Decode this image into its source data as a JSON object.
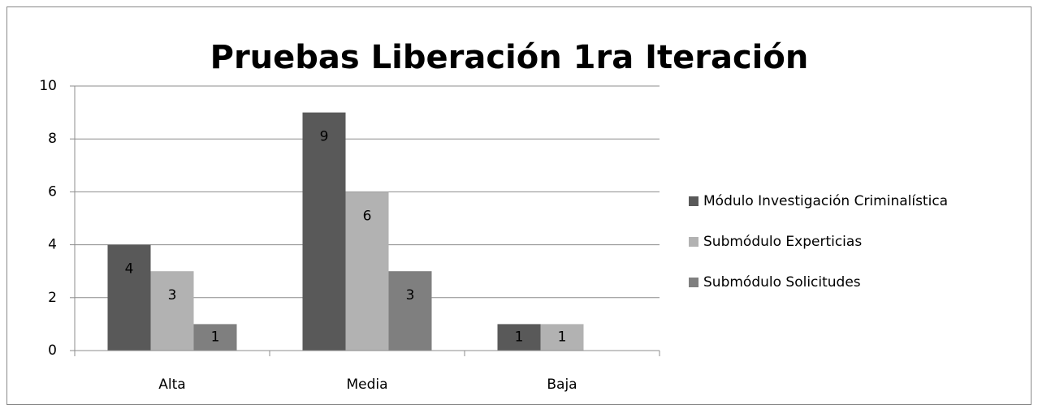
{
  "chart_data": {
    "type": "bar",
    "title": "Pruebas Liberación 1ra Iteración",
    "categories": [
      "Alta",
      "Media",
      "Baja"
    ],
    "series": [
      {
        "name": "Módulo Investigación Criminalística",
        "color": "#595959",
        "values": [
          4,
          9,
          1
        ]
      },
      {
        "name": "Submódulo Experticias",
        "color": "#b2b2b2",
        "values": [
          3,
          6,
          1
        ]
      },
      {
        "name": "Submódulo Solicitudes",
        "color": "#7f7f7f",
        "values": [
          1,
          3,
          0
        ]
      }
    ],
    "ylim": [
      0,
      10
    ],
    "yticks": [
      0,
      2,
      4,
      6,
      8,
      10
    ],
    "grid": true,
    "legend": "right"
  }
}
